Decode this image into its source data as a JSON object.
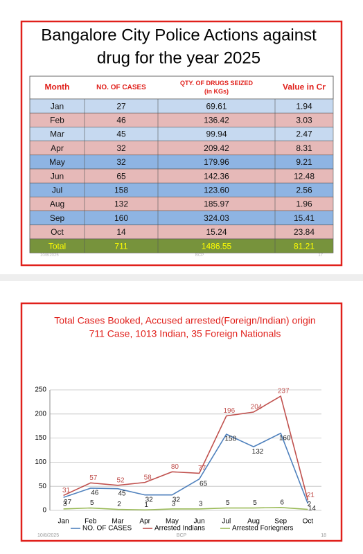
{
  "table": {
    "title_lines": [
      "Bangalore City Police Actions against",
      "drug for the year 2025"
    ],
    "header": [
      [
        "Month"
      ],
      [
        "NO. OF CASES"
      ],
      [
        "QTY. OF DRUGS SEIZED",
        "(in KGs)"
      ],
      [
        "Value in Cr"
      ]
    ],
    "rows": [
      [
        "Jan",
        "27",
        "69.61",
        "1.94"
      ],
      [
        "Feb",
        "46",
        "136.42",
        "3.03"
      ],
      [
        "Mar",
        "45",
        "99.94",
        "2.47"
      ],
      [
        "Apr",
        "32",
        "209.42",
        "8.31"
      ],
      [
        "May",
        "32",
        "179.96",
        "9.21"
      ],
      [
        "Jun",
        "65",
        "142.36",
        "12.48"
      ],
      [
        "Jul",
        "158",
        "123.60",
        "2.56"
      ],
      [
        "Aug",
        "132",
        "185.97",
        "1.96"
      ],
      [
        "Sep",
        "160",
        "324.03",
        "15.41"
      ],
      [
        "Oct",
        "14",
        "15.24",
        "23.84"
      ]
    ],
    "total": [
      "Total",
      "711",
      "1486.55",
      "81.21"
    ],
    "footer": [
      "10/8/2025",
      "BCP",
      "17"
    ]
  },
  "chart_data": {
    "type": "line",
    "title_lines": [
      "Total Cases Booked, Accused arrested(Foreign/Indian) origin",
      "711 Case, 1013 Indian, 35 Foreign Nationals"
    ],
    "categories": [
      "Jan",
      "Feb",
      "Mar",
      "Apr",
      "May",
      "Jun",
      "Jul",
      "Aug",
      "Sep",
      "Oct"
    ],
    "series": [
      {
        "name": "NO. OF CASES",
        "color": "#4f81bd",
        "values": [
          27,
          46,
          45,
          32,
          32,
          65,
          158,
          132,
          160,
          14
        ]
      },
      {
        "name": "Arrested Indians",
        "color": "#c0504d",
        "values": [
          31,
          57,
          52,
          58,
          80,
          77,
          196,
          204,
          237,
          21
        ]
      },
      {
        "name": "Arrested Foriegners",
        "color": "#9bbb59",
        "values": [
          3,
          5,
          2,
          1,
          3,
          3,
          5,
          5,
          6,
          2
        ]
      }
    ],
    "ylim": [
      0,
      250
    ],
    "yticks": [
      0,
      50,
      100,
      150,
      200,
      250
    ],
    "grid": true,
    "legend": "bottom",
    "footer": [
      "10/8/2025",
      "BCP",
      "18"
    ]
  }
}
